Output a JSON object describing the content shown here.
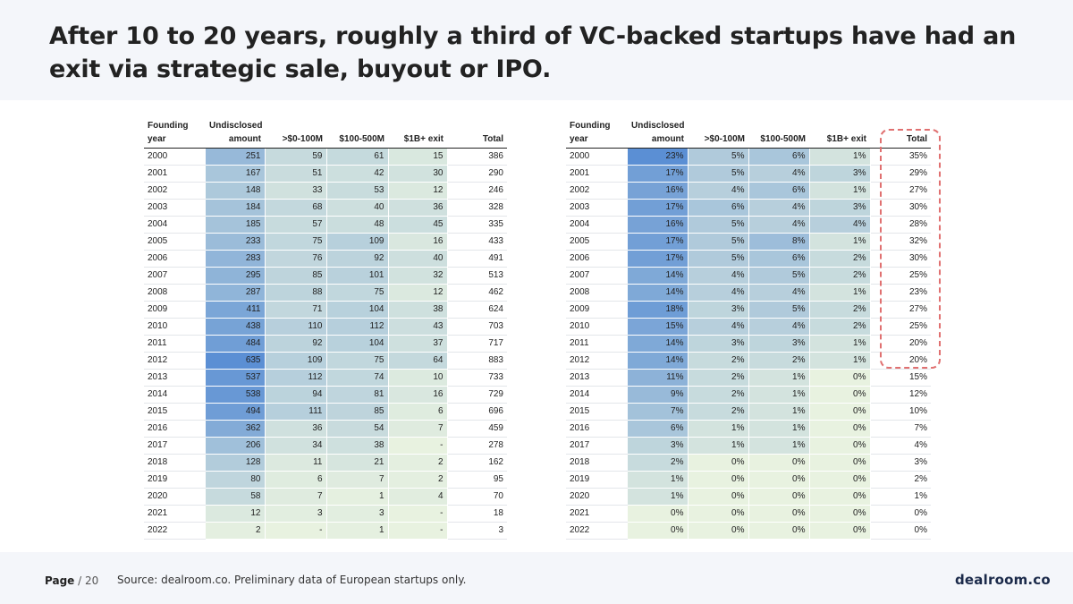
{
  "title": "After 10 to 20 years, roughly a third of VC-backed startups have had an exit via strategic sale, buyout or IPO.",
  "footer": {
    "page_label": "Page",
    "page_total": "/ 20",
    "source": "Source: dealroom.co. Preliminary data of European startups only.",
    "brand": "dealroom.co"
  },
  "headers": {
    "founding_year_line1": "Founding",
    "founding_year_line2": "year",
    "undisclosed_line1": "Undisclosed",
    "undisclosed_line2": "amount",
    "col_0_100": ">$0-100M",
    "col_100_500": "$100-500M",
    "col_1b": "$1B+ exit",
    "col_total": "Total"
  },
  "colors": {
    "scale_low": "#e8f2e0",
    "scale_high": "#5b8fd4"
  },
  "left_table": {
    "rows": [
      {
        "year": "2000",
        "undisclosed": "251",
        "m0_100": "59",
        "m100_500": "61",
        "b1": "15",
        "total": "386"
      },
      {
        "year": "2001",
        "undisclosed": "167",
        "m0_100": "51",
        "m100_500": "42",
        "b1": "30",
        "total": "290"
      },
      {
        "year": "2002",
        "undisclosed": "148",
        "m0_100": "33",
        "m100_500": "53",
        "b1": "12",
        "total": "246"
      },
      {
        "year": "2003",
        "undisclosed": "184",
        "m0_100": "68",
        "m100_500": "40",
        "b1": "36",
        "total": "328"
      },
      {
        "year": "2004",
        "undisclosed": "185",
        "m0_100": "57",
        "m100_500": "48",
        "b1": "45",
        "total": "335"
      },
      {
        "year": "2005",
        "undisclosed": "233",
        "m0_100": "75",
        "m100_500": "109",
        "b1": "16",
        "total": "433"
      },
      {
        "year": "2006",
        "undisclosed": "283",
        "m0_100": "76",
        "m100_500": "92",
        "b1": "40",
        "total": "491"
      },
      {
        "year": "2007",
        "undisclosed": "295",
        "m0_100": "85",
        "m100_500": "101",
        "b1": "32",
        "total": "513"
      },
      {
        "year": "2008",
        "undisclosed": "287",
        "m0_100": "88",
        "m100_500": "75",
        "b1": "12",
        "total": "462"
      },
      {
        "year": "2009",
        "undisclosed": "411",
        "m0_100": "71",
        "m100_500": "104",
        "b1": "38",
        "total": "624"
      },
      {
        "year": "2010",
        "undisclosed": "438",
        "m0_100": "110",
        "m100_500": "112",
        "b1": "43",
        "total": "703"
      },
      {
        "year": "2011",
        "undisclosed": "484",
        "m0_100": "92",
        "m100_500": "104",
        "b1": "37",
        "total": "717"
      },
      {
        "year": "2012",
        "undisclosed": "635",
        "m0_100": "109",
        "m100_500": "75",
        "b1": "64",
        "total": "883"
      },
      {
        "year": "2013",
        "undisclosed": "537",
        "m0_100": "112",
        "m100_500": "74",
        "b1": "10",
        "total": "733"
      },
      {
        "year": "2014",
        "undisclosed": "538",
        "m0_100": "94",
        "m100_500": "81",
        "b1": "16",
        "total": "729"
      },
      {
        "year": "2015",
        "undisclosed": "494",
        "m0_100": "111",
        "m100_500": "85",
        "b1": "6",
        "total": "696"
      },
      {
        "year": "2016",
        "undisclosed": "362",
        "m0_100": "36",
        "m100_500": "54",
        "b1": "7",
        "total": "459"
      },
      {
        "year": "2017",
        "undisclosed": "206",
        "m0_100": "34",
        "m100_500": "38",
        "b1": "-",
        "total": "278"
      },
      {
        "year": "2018",
        "undisclosed": "128",
        "m0_100": "11",
        "m100_500": "21",
        "b1": "2",
        "total": "162"
      },
      {
        "year": "2019",
        "undisclosed": "80",
        "m0_100": "6",
        "m100_500": "7",
        "b1": "2",
        "total": "95"
      },
      {
        "year": "2020",
        "undisclosed": "58",
        "m0_100": "7",
        "m100_500": "1",
        "b1": "4",
        "total": "70"
      },
      {
        "year": "2021",
        "undisclosed": "12",
        "m0_100": "3",
        "m100_500": "3",
        "b1": "-",
        "total": "18"
      },
      {
        "year": "2022",
        "undisclosed": "2",
        "m0_100": "-",
        "m100_500": "1",
        "b1": "-",
        "total": "3"
      }
    ]
  },
  "right_table": {
    "rows": [
      {
        "year": "2000",
        "undisclosed": "23%",
        "m0_100": "5%",
        "m100_500": "6%",
        "b1": "1%",
        "total": "35%"
      },
      {
        "year": "2001",
        "undisclosed": "17%",
        "m0_100": "5%",
        "m100_500": "4%",
        "b1": "3%",
        "total": "29%"
      },
      {
        "year": "2002",
        "undisclosed": "16%",
        "m0_100": "4%",
        "m100_500": "6%",
        "b1": "1%",
        "total": "27%"
      },
      {
        "year": "2003",
        "undisclosed": "17%",
        "m0_100": "6%",
        "m100_500": "4%",
        "b1": "3%",
        "total": "30%"
      },
      {
        "year": "2004",
        "undisclosed": "16%",
        "m0_100": "5%",
        "m100_500": "4%",
        "b1": "4%",
        "total": "28%"
      },
      {
        "year": "2005",
        "undisclosed": "17%",
        "m0_100": "5%",
        "m100_500": "8%",
        "b1": "1%",
        "total": "32%"
      },
      {
        "year": "2006",
        "undisclosed": "17%",
        "m0_100": "5%",
        "m100_500": "6%",
        "b1": "2%",
        "total": "30%"
      },
      {
        "year": "2007",
        "undisclosed": "14%",
        "m0_100": "4%",
        "m100_500": "5%",
        "b1": "2%",
        "total": "25%"
      },
      {
        "year": "2008",
        "undisclosed": "14%",
        "m0_100": "4%",
        "m100_500": "4%",
        "b1": "1%",
        "total": "23%"
      },
      {
        "year": "2009",
        "undisclosed": "18%",
        "m0_100": "3%",
        "m100_500": "5%",
        "b1": "2%",
        "total": "27%"
      },
      {
        "year": "2010",
        "undisclosed": "15%",
        "m0_100": "4%",
        "m100_500": "4%",
        "b1": "2%",
        "total": "25%"
      },
      {
        "year": "2011",
        "undisclosed": "14%",
        "m0_100": "3%",
        "m100_500": "3%",
        "b1": "1%",
        "total": "20%"
      },
      {
        "year": "2012",
        "undisclosed": "14%",
        "m0_100": "2%",
        "m100_500": "2%",
        "b1": "1%",
        "total": "20%"
      },
      {
        "year": "2013",
        "undisclosed": "11%",
        "m0_100": "2%",
        "m100_500": "1%",
        "b1": "0%",
        "total": "15%"
      },
      {
        "year": "2014",
        "undisclosed": "9%",
        "m0_100": "2%",
        "m100_500": "1%",
        "b1": "0%",
        "total": "12%"
      },
      {
        "year": "2015",
        "undisclosed": "7%",
        "m0_100": "2%",
        "m100_500": "1%",
        "b1": "0%",
        "total": "10%"
      },
      {
        "year": "2016",
        "undisclosed": "6%",
        "m0_100": "1%",
        "m100_500": "1%",
        "b1": "0%",
        "total": "7%"
      },
      {
        "year": "2017",
        "undisclosed": "3%",
        "m0_100": "1%",
        "m100_500": "1%",
        "b1": "0%",
        "total": "4%"
      },
      {
        "year": "2018",
        "undisclosed": "2%",
        "m0_100": "0%",
        "m100_500": "0%",
        "b1": "0%",
        "total": "3%"
      },
      {
        "year": "2019",
        "undisclosed": "1%",
        "m0_100": "0%",
        "m100_500": "0%",
        "b1": "0%",
        "total": "2%"
      },
      {
        "year": "2020",
        "undisclosed": "1%",
        "m0_100": "0%",
        "m100_500": "0%",
        "b1": "0%",
        "total": "1%"
      },
      {
        "year": "2021",
        "undisclosed": "0%",
        "m0_100": "0%",
        "m100_500": "0%",
        "b1": "0%",
        "total": "0%"
      },
      {
        "year": "2022",
        "undisclosed": "0%",
        "m0_100": "0%",
        "m100_500": "0%",
        "b1": "0%",
        "total": "0%"
      }
    ]
  }
}
